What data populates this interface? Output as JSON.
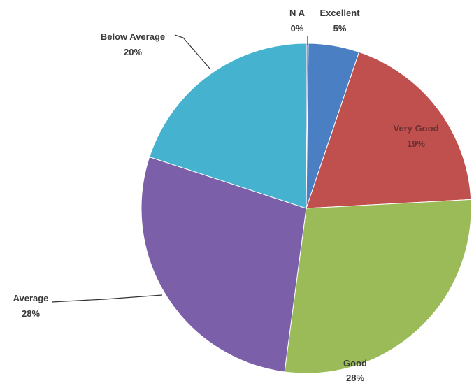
{
  "chart_data": {
    "type": "pie",
    "title": "",
    "slices": [
      {
        "label": "N A",
        "percent_label": "0%",
        "value": 0.2,
        "color": "#8ea2c6"
      },
      {
        "label": "Excellent",
        "percent_label": "5%",
        "value": 5,
        "color": "#4a7fc4"
      },
      {
        "label": "Very Good",
        "percent_label": "19%",
        "value": 19,
        "color": "#c0504d"
      },
      {
        "label": "Good",
        "percent_label": "28%",
        "value": 28,
        "color": "#9bbb59"
      },
      {
        "label": "Average",
        "percent_label": "28%",
        "value": 28,
        "color": "#7b5fa8"
      },
      {
        "label": "Below Average",
        "percent_label": "20%",
        "value": 20,
        "color": "#45b3cf"
      }
    ],
    "start_angle_deg": 0,
    "direction": "clockwise",
    "legend": "none",
    "label_style": "category name and percentage next to each slice",
    "label_color": "#3a3a3a",
    "very_good_label_color": "#6e3130"
  }
}
